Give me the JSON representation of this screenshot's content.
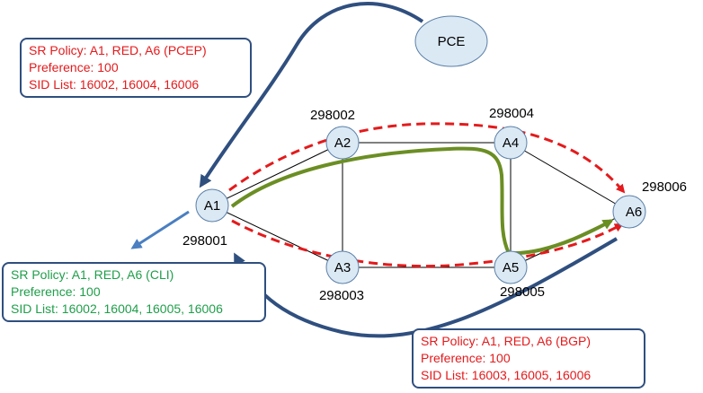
{
  "nodes": [
    {
      "id": "A1",
      "label": "A1",
      "sid": "298001"
    },
    {
      "id": "A2",
      "label": "A2",
      "sid": "298002"
    },
    {
      "id": "A3",
      "label": "A3",
      "sid": "298003"
    },
    {
      "id": "A4",
      "label": "A4",
      "sid": "298004"
    },
    {
      "id": "A5",
      "label": "A5",
      "sid": "298005"
    },
    {
      "id": "A6",
      "label": "A6",
      "sid": "298006"
    },
    {
      "id": "PCE",
      "label": "PCE"
    }
  ],
  "links": [
    [
      "A1",
      "A2"
    ],
    [
      "A2",
      "A4"
    ],
    [
      "A4",
      "A6"
    ],
    [
      "A1",
      "A3"
    ],
    [
      "A3",
      "A5"
    ],
    [
      "A5",
      "A6"
    ],
    [
      "A2",
      "A3"
    ],
    [
      "A4",
      "A5"
    ]
  ],
  "policies": {
    "pcep": {
      "line1": "SR Policy: A1, RED, A6 (PCEP)",
      "line2": "Preference: 100",
      "line3": "SID List: 16002, 16004, 16006",
      "color": "#e41a1c"
    },
    "cli": {
      "line1": "SR Policy: A1, RED, A6 (CLI)",
      "line2": "Preference: 100",
      "line3": "SID List: 16002, 16004, 16005, 16006",
      "color": "#1f9e4a"
    },
    "bgp": {
      "line1": "SR Policy: A1, RED, A6 (BGP)",
      "line2": "Preference: 100",
      "line3": "SID List: 16003, 16005, 16006",
      "color": "#e41a1c"
    }
  },
  "colors": {
    "node_fill": "#dbe9f4",
    "node_stroke": "#5b7fa8",
    "arrow_blue": "#2f4f7f",
    "path_red": "#e41a1c",
    "path_green": "#6b8e23",
    "cli_arrow": "#4a7fc1"
  }
}
